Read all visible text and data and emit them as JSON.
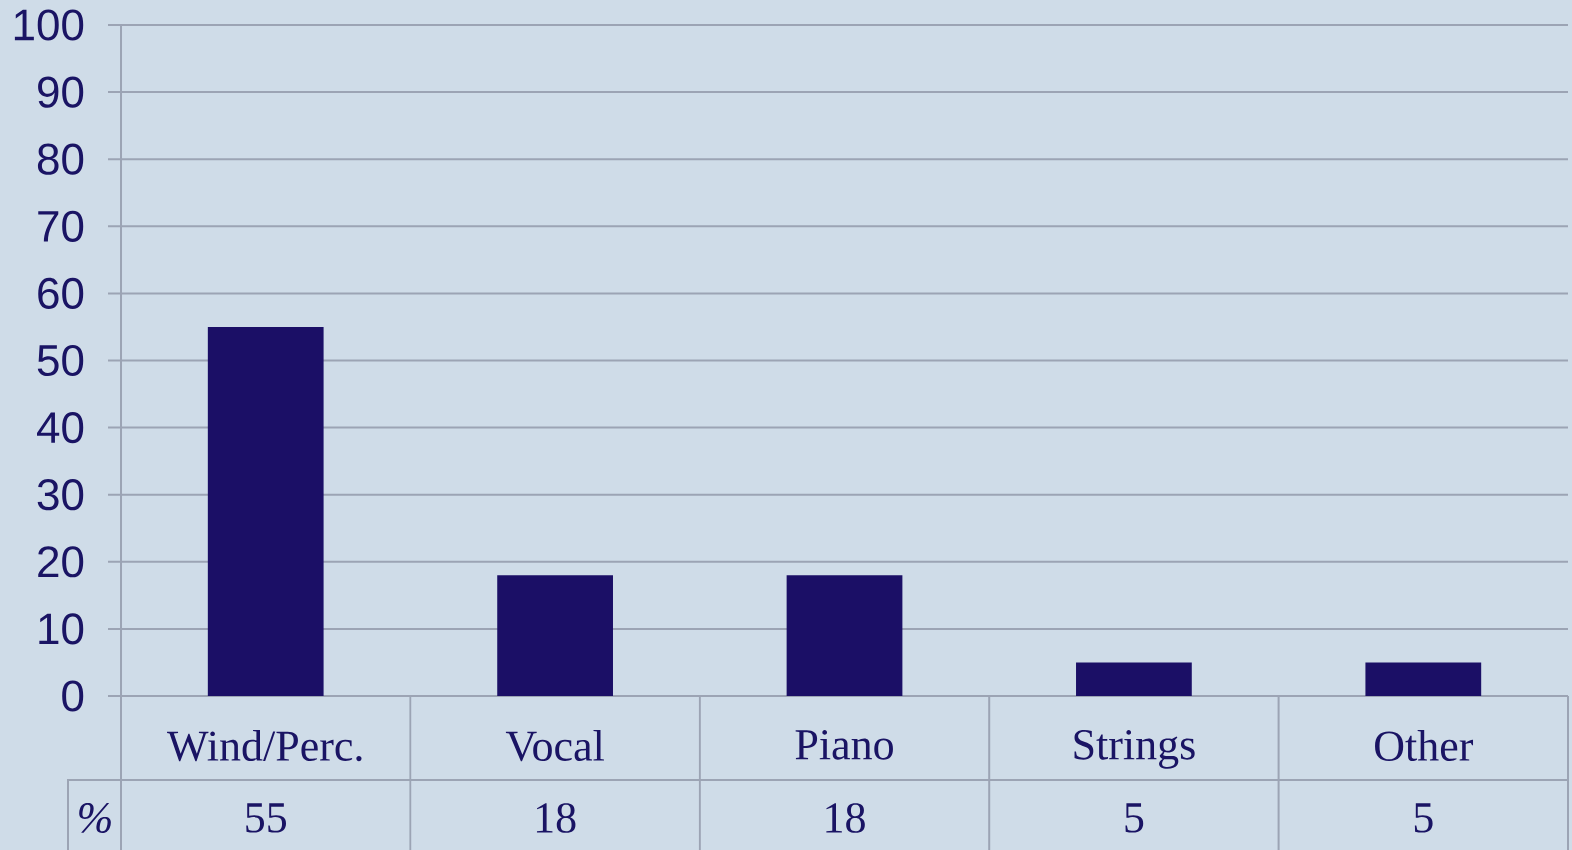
{
  "chart_data": {
    "type": "bar",
    "categories": [
      "Wind/Perc.",
      "Vocal",
      "Piano",
      "Strings",
      "Other"
    ],
    "series": [
      {
        "name": "%",
        "color": "#1b0f66",
        "values": [
          55,
          18,
          18,
          5,
          5
        ]
      }
    ],
    "ylim": [
      0,
      100
    ],
    "yticks": [
      0,
      10,
      20,
      30,
      40,
      50,
      60,
      70,
      80,
      90,
      100
    ],
    "grid": "y",
    "data_labels": true
  }
}
